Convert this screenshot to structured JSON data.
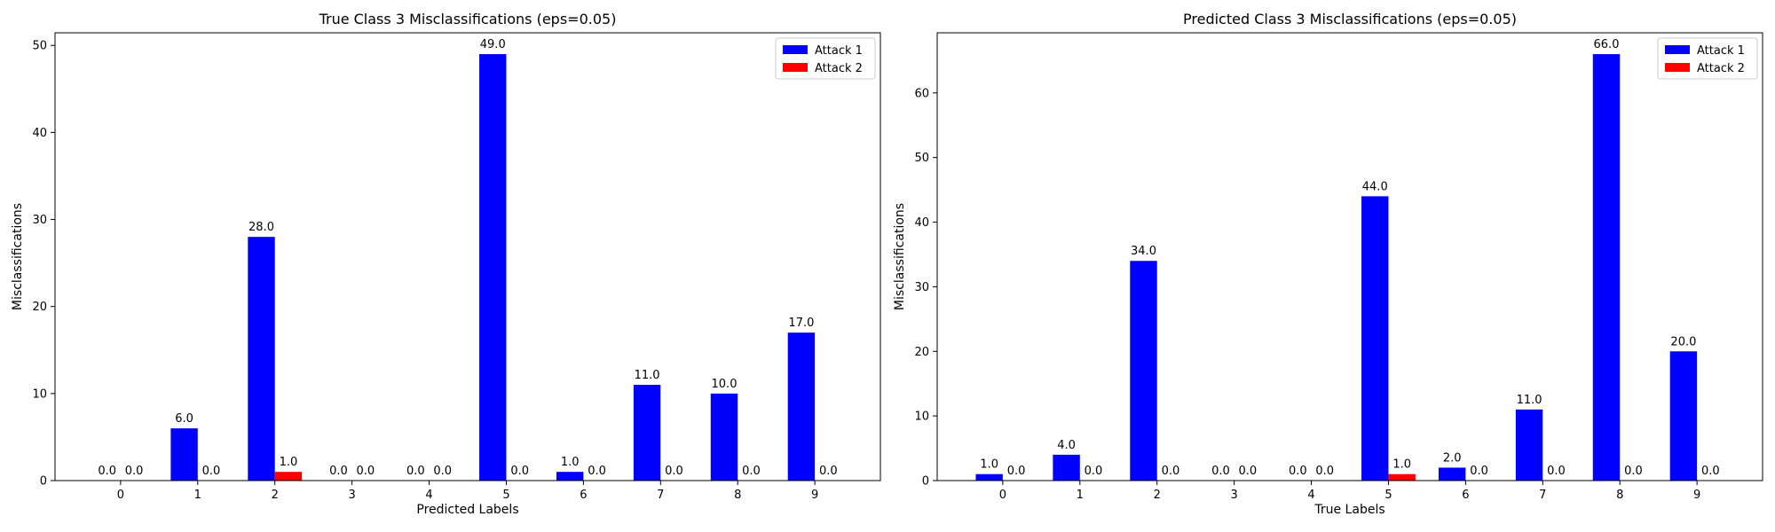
{
  "chart_data": [
    {
      "type": "bar",
      "title": "True Class 3 Misclassifications (eps=0.05)",
      "xlabel": "Predicted Labels",
      "ylabel": "Misclassifications",
      "categories": [
        "0",
        "1",
        "2",
        "3",
        "4",
        "5",
        "6",
        "7",
        "8",
        "9"
      ],
      "series": [
        {
          "name": "Attack 1",
          "color": "#0000ff",
          "values": [
            0,
            6,
            28,
            0,
            0,
            49,
            1,
            11,
            10,
            17
          ]
        },
        {
          "name": "Attack 2",
          "color": "#ff0000",
          "values": [
            0,
            0,
            1,
            0,
            0,
            0,
            0,
            0,
            0,
            0
          ]
        }
      ],
      "ylim": [
        0,
        51.45
      ],
      "yticks": [
        0,
        10,
        20,
        30,
        40,
        50
      ],
      "grid": false,
      "legend": "top-right"
    },
    {
      "type": "bar",
      "title": "Predicted Class 3 Misclassifications (eps=0.05)",
      "xlabel": "True Labels",
      "ylabel": "Misclassifications",
      "categories": [
        "0",
        "1",
        "2",
        "3",
        "4",
        "5",
        "6",
        "7",
        "8",
        "9"
      ],
      "series": [
        {
          "name": "Attack 1",
          "color": "#0000ff",
          "values": [
            1,
            4,
            34,
            0,
            0,
            44,
            2,
            11,
            66,
            20
          ]
        },
        {
          "name": "Attack 2",
          "color": "#ff0000",
          "values": [
            0,
            0,
            0,
            0,
            0,
            1,
            0,
            0,
            0,
            0
          ]
        }
      ],
      "ylim": [
        0,
        69.3
      ],
      "yticks": [
        0,
        10,
        20,
        30,
        40,
        50,
        60
      ],
      "grid": false,
      "legend": "top-right"
    }
  ]
}
